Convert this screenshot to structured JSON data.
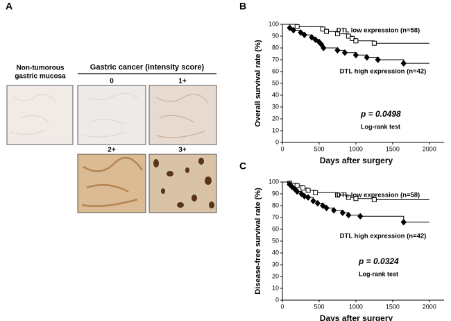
{
  "panels": {
    "a": "A",
    "b": "B",
    "c": "C"
  },
  "histology": {
    "normal_label": [
      "Non-tumorous",
      "gastric mucosa"
    ],
    "cancer_label": "Gastric cancer (intensity score)",
    "scores": [
      "0",
      "1+",
      "2+",
      "3+"
    ]
  },
  "chart_data": [
    {
      "type": "step",
      "xlabel": "Days after surgery",
      "ylabel": "Overall survival rate (%)",
      "xlim": [
        0,
        2200
      ],
      "xticks": [
        0,
        500,
        1000,
        1500,
        2000
      ],
      "ylim": [
        0,
        100
      ],
      "yticks": [
        0,
        10,
        20,
        30,
        40,
        50,
        60,
        70,
        80,
        90,
        100
      ],
      "p_value": "p = 0.0498",
      "test": "Log-rank test",
      "series": [
        {
          "name": "DTL low expression (n=58)",
          "color": "#000000",
          "marker": "square",
          "x": [
            0,
            200,
            550,
            600,
            750,
            900,
            950,
            1000,
            1250,
            2000
          ],
          "values": [
            100,
            98,
            96,
            94,
            92,
            90,
            88,
            86,
            84,
            84
          ]
        },
        {
          "name": "DTL high expression (n=42)",
          "color": "#000000",
          "marker": "diamond",
          "x": [
            0,
            100,
            150,
            250,
            300,
            400,
            450,
            500,
            530,
            560,
            750,
            850,
            1000,
            1150,
            1300,
            1650,
            2000
          ],
          "values": [
            100,
            97,
            95,
            93,
            91,
            89,
            87,
            85,
            83,
            80,
            78,
            76,
            74,
            72,
            70,
            67,
            67
          ]
        }
      ]
    },
    {
      "type": "step",
      "xlabel": "Days after surgery",
      "ylabel": "Disease-free survival rate (%)",
      "xlim": [
        0,
        2200
      ],
      "xticks": [
        0,
        500,
        1000,
        1500,
        2000
      ],
      "ylim": [
        0,
        100
      ],
      "yticks": [
        0,
        10,
        20,
        30,
        40,
        50,
        60,
        70,
        80,
        90,
        100
      ],
      "p_value": "p = 0.0324",
      "test": "Log-rank test",
      "series": [
        {
          "name": "DTL low expression (n=58)",
          "color": "#000000",
          "marker": "square",
          "x": [
            0,
            100,
            200,
            280,
            350,
            450,
            750,
            900,
            1000,
            1250,
            2000
          ],
          "values": [
            100,
            99,
            97,
            95,
            93,
            91,
            89,
            87,
            86,
            85,
            85
          ]
        },
        {
          "name": "DTL high expression (n=42)",
          "color": "#000000",
          "marker": "diamond",
          "x": [
            0,
            100,
            130,
            170,
            200,
            260,
            300,
            350,
            420,
            480,
            550,
            600,
            700,
            820,
            900,
            1060,
            1650,
            2000
          ],
          "values": [
            100,
            98,
            96,
            94,
            92,
            90,
            88,
            87,
            84,
            82,
            80,
            78,
            76,
            74,
            72,
            71,
            66,
            66
          ]
        }
      ]
    }
  ]
}
